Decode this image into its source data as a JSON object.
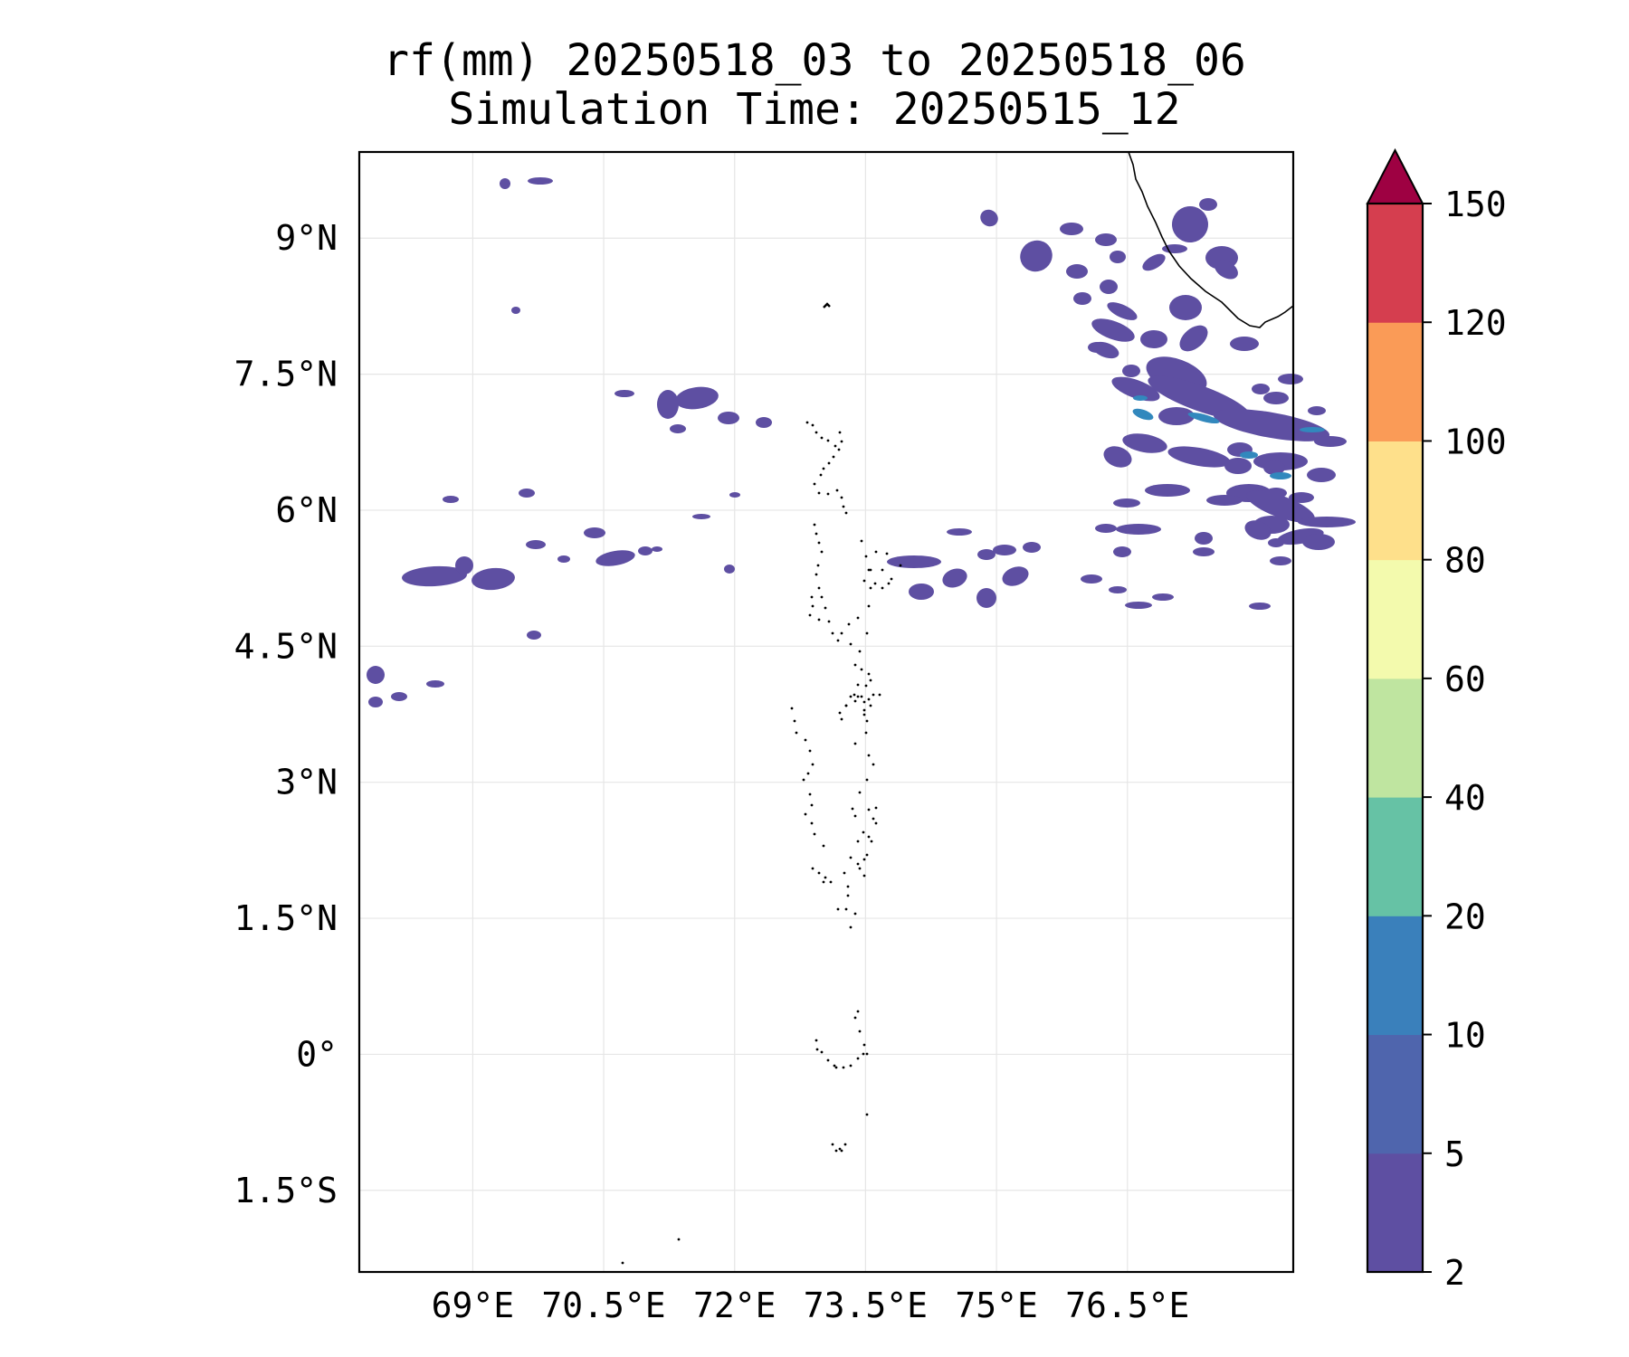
{
  "title": {
    "line1": "rf(mm) 20250518_03 to 20250518_06",
    "line2": "Simulation Time: 20250515_12"
  },
  "map": {
    "lon_range": [
      67.7,
      78.4
    ],
    "lat_range": [
      -2.4,
      9.95
    ],
    "lon_ticks": [
      {
        "value": 69.0,
        "label": "69°E"
      },
      {
        "value": 70.5,
        "label": "70.5°E"
      },
      {
        "value": 72.0,
        "label": "72°E"
      },
      {
        "value": 73.5,
        "label": "73.5°E"
      },
      {
        "value": 75.0,
        "label": "75°E"
      },
      {
        "value": 76.5,
        "label": "76.5°E"
      }
    ],
    "lat_ticks": [
      {
        "value": 9.0,
        "label": "9°N"
      },
      {
        "value": 7.5,
        "label": "7.5°N"
      },
      {
        "value": 6.0,
        "label": "6°N"
      },
      {
        "value": 4.5,
        "label": "4.5°N"
      },
      {
        "value": 3.0,
        "label": "3°N"
      },
      {
        "value": 1.5,
        "label": "1.5°N"
      },
      {
        "value": 0.0,
        "label": "0°"
      },
      {
        "value": -1.5,
        "label": "1.5°S"
      }
    ],
    "gridlines": true,
    "coastline_color": "#000000",
    "rain_color_low": "#5e4fa2",
    "rain_color_mid": "#3288bd"
  },
  "colorbar": {
    "levels": [
      "2",
      "5",
      "10",
      "20",
      "40",
      "60",
      "80",
      "100",
      "120",
      "150"
    ],
    "colors": [
      "#5e4fa2",
      "#4f65ad",
      "#3a80bb",
      "#66c2a5",
      "#bfe5a0",
      "#f3faad",
      "#fee08b",
      "#fa9b57",
      "#d53e4f"
    ],
    "extend_color": "#9e0142",
    "extend": "max"
  }
}
